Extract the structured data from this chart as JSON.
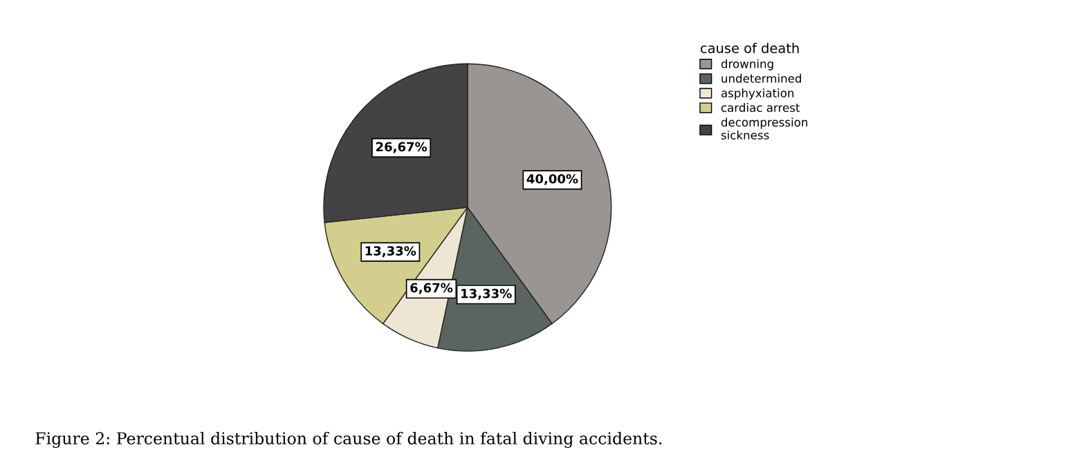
{
  "chart_data": {
    "type": "pie",
    "legend_title": "cause of death",
    "legend": "top right",
    "categories": [
      "drowning",
      "undetermined",
      "asphyxiation",
      "cardiac arrest",
      "decompression\nsickness"
    ],
    "values": [
      40.0,
      13.33,
      6.67,
      13.33,
      26.67
    ],
    "colors": [
      "#9a9592",
      "#5b655f",
      "#ede6d3",
      "#d3cd8e",
      "#434346"
    ],
    "value_labels": [
      "40,00%",
      "13,33%",
      "6,67%",
      "13,33%",
      "26,67%"
    ],
    "annotations": [
      "Figure 2: Percentual distribution of cause of death in fatal diving accidents."
    ]
  }
}
